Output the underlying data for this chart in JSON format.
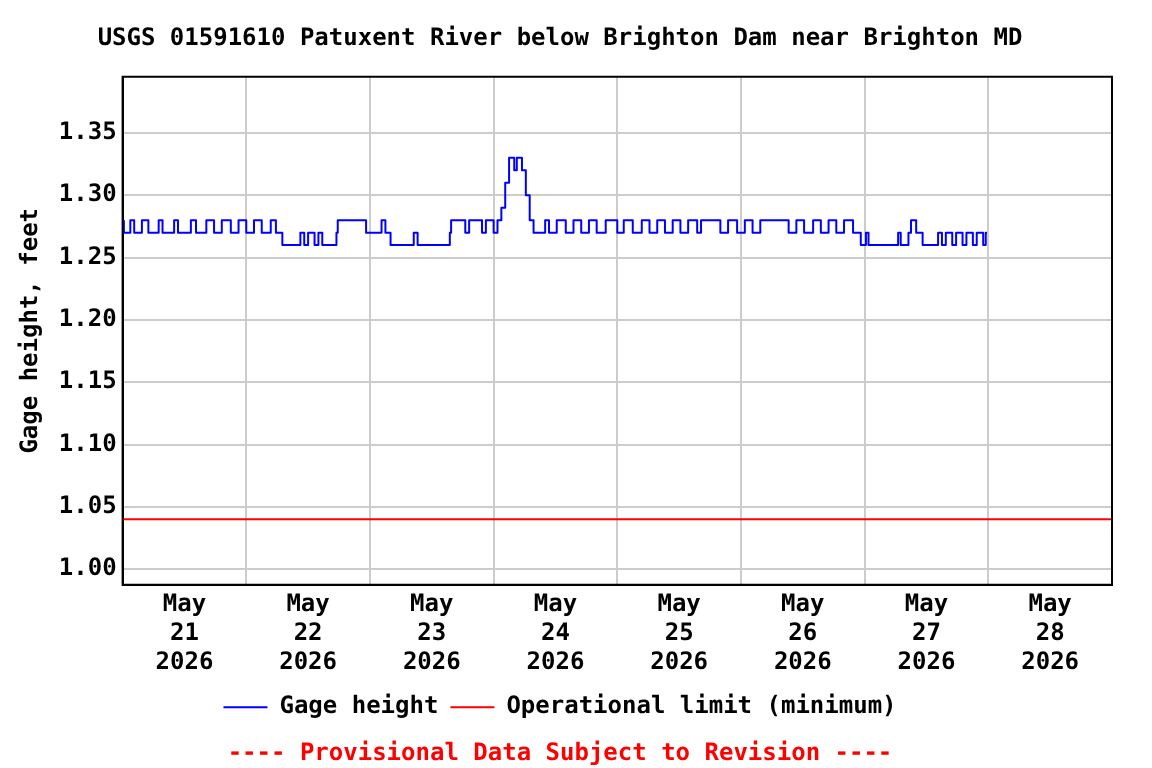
{
  "chart_data": {
    "type": "step",
    "title": "USGS 01591610 Patuxent River below Brighton Dam near Brighton MD",
    "ylabel": "Gage height, feet",
    "annotations": [
      "---- Provisional Data Subject to Revision ----"
    ],
    "xlim": [
      "2026-05-21T00:00",
      "2026-05-29T00:00"
    ],
    "xticks": [
      {
        "value": "2026-05-21T12:00",
        "label": "May\n21\n2026"
      },
      {
        "value": "2026-05-22T00:00",
        "label": null
      },
      {
        "value": "2026-05-22T12:00",
        "label": "May\n22\n2026"
      },
      {
        "value": "2026-05-23T00:00",
        "label": null
      },
      {
        "value": "2026-05-23T12:00",
        "label": "May\n23\n2026"
      },
      {
        "value": "2026-05-24T00:00",
        "label": null
      },
      {
        "value": "2026-05-24T12:00",
        "label": "May\n24\n2026"
      },
      {
        "value": "2026-05-25T00:00",
        "label": null
      },
      {
        "value": "2026-05-25T12:00",
        "label": "May\n25\n2026"
      },
      {
        "value": "2026-05-26T00:00",
        "label": null
      },
      {
        "value": "2026-05-26T12:00",
        "label": "May\n26\n2026"
      },
      {
        "value": "2026-05-27T00:00",
        "label": null
      },
      {
        "value": "2026-05-27T12:00",
        "label": "May\n27\n2026"
      },
      {
        "value": "2026-05-28T00:00",
        "label": null
      },
      {
        "value": "2026-05-28T12:00",
        "label": "May\n28\n2026"
      }
    ],
    "ylim": [
      0.9875,
      1.395
    ],
    "yticks": [
      {
        "value": 1,
        "label": "1.00"
      },
      {
        "value": 1.05,
        "label": "1.05"
      },
      {
        "value": 1.1,
        "label": "1.10"
      },
      {
        "value": 1.15,
        "label": "1.15"
      },
      {
        "value": 1.2,
        "label": "1.20"
      },
      {
        "value": 1.25,
        "label": "1.25"
      },
      {
        "value": 1.3,
        "label": "1.30"
      },
      {
        "value": 1.35,
        "label": "1.35"
      }
    ],
    "grid": true,
    "legend": "bottom",
    "marker": "none",
    "ref_lines": [
      {
        "axis": "y",
        "value": 1.04,
        "label": "Operational limit (minimum)",
        "color": "#ff0000"
      }
    ],
    "series": [
      {
        "name": "Gage height",
        "color": "#0000ff",
        "x": [
          "2026-05-21T00:15",
          "2026-05-21T01:30",
          "2026-05-21T02:15",
          "2026-05-21T03:45",
          "2026-05-21T05:00",
          "2026-05-21T07:00",
          "2026-05-21T07:45",
          "2026-05-21T10:00",
          "2026-05-21T10:45",
          "2026-05-21T13:15",
          "2026-05-21T14:15",
          "2026-05-21T16:15",
          "2026-05-21T17:45",
          "2026-05-21T19:15",
          "2026-05-21T21:00",
          "2026-05-21T22:30",
          "2026-05-22T00:00",
          "2026-05-22T01:30",
          "2026-05-22T03:00",
          "2026-05-22T04:45",
          "2026-05-22T05:45",
          "2026-05-22T07:00",
          "2026-05-22T10:30",
          "2026-05-22T11:15",
          "2026-05-22T12:00",
          "2026-05-22T13:15",
          "2026-05-22T14:00",
          "2026-05-22T14:45",
          "2026-05-22T17:30",
          "2026-05-22T17:45",
          "2026-05-22T23:15",
          "2026-05-23T02:15",
          "2026-05-23T03:00",
          "2026-05-23T04:00",
          "2026-05-23T08:30",
          "2026-05-23T09:15",
          "2026-05-23T15:30",
          "2026-05-23T15:45",
          "2026-05-23T18:30",
          "2026-05-23T19:15",
          "2026-05-23T21:45",
          "2026-05-23T22:30",
          "2026-05-24T00:00",
          "2026-05-24T00:45",
          "2026-05-24T01:30",
          "2026-05-24T02:15",
          "2026-05-24T03:00",
          "2026-05-24T04:00",
          "2026-05-24T04:30",
          "2026-05-24T05:30",
          "2026-05-24T06:15",
          "2026-05-24T07:00",
          "2026-05-24T07:45",
          "2026-05-24T10:00",
          "2026-05-24T10:45",
          "2026-05-24T12:15",
          "2026-05-24T14:00",
          "2026-05-24T15:30",
          "2026-05-24T17:00",
          "2026-05-24T18:30",
          "2026-05-24T20:00",
          "2026-05-24T21:45",
          "2026-05-25T00:00",
          "2026-05-25T01:15",
          "2026-05-25T03:00",
          "2026-05-25T04:45",
          "2026-05-25T06:15",
          "2026-05-25T07:45",
          "2026-05-25T09:15",
          "2026-05-25T10:45",
          "2026-05-25T12:15",
          "2026-05-25T13:45",
          "2026-05-25T15:30",
          "2026-05-25T16:15",
          "2026-05-25T20:00",
          "2026-05-25T21:30",
          "2026-05-25T23:15",
          "2026-05-26T00:45",
          "2026-05-26T02:15",
          "2026-05-26T03:45",
          "2026-05-26T09:15",
          "2026-05-26T10:45",
          "2026-05-26T12:15",
          "2026-05-26T14:00",
          "2026-05-26T15:30",
          "2026-05-26T17:00",
          "2026-05-26T18:30",
          "2026-05-26T20:00",
          "2026-05-26T21:45",
          "2026-05-26T23:15",
          "2026-05-27T00:15",
          "2026-05-27T00:45",
          "2026-05-27T06:30",
          "2026-05-27T07:00",
          "2026-05-27T08:30",
          "2026-05-27T09:00",
          "2026-05-27T10:00",
          "2026-05-27T11:15",
          "2026-05-27T14:15",
          "2026-05-27T15:00",
          "2026-05-27T15:45",
          "2026-05-27T17:00",
          "2026-05-27T17:45",
          "2026-05-27T19:00",
          "2026-05-27T19:45",
          "2026-05-27T21:00",
          "2026-05-27T21:45",
          "2026-05-27T23:00",
          "2026-05-27T23:30",
          "2026-05-27T23:45"
        ],
        "values": [
          1.28,
          1.27,
          1.28,
          1.27,
          1.28,
          1.27,
          1.28,
          1.27,
          1.28,
          1.27,
          1.28,
          1.27,
          1.28,
          1.27,
          1.28,
          1.27,
          1.28,
          1.27,
          1.28,
          1.27,
          1.28,
          1.27,
          1.26,
          1.27,
          1.26,
          1.27,
          1.26,
          1.27,
          1.26,
          1.27,
          1.28,
          1.27,
          1.28,
          1.27,
          1.26,
          1.27,
          1.26,
          1.27,
          1.28,
          1.27,
          1.28,
          1.27,
          1.28,
          1.27,
          1.28,
          1.29,
          1.31,
          1.33,
          1.32,
          1.33,
          1.32,
          1.3,
          1.28,
          1.27,
          1.28,
          1.27,
          1.28,
          1.27,
          1.28,
          1.27,
          1.28,
          1.27,
          1.28,
          1.27,
          1.28,
          1.27,
          1.28,
          1.27,
          1.28,
          1.27,
          1.28,
          1.27,
          1.28,
          1.27,
          1.28,
          1.27,
          1.28,
          1.27,
          1.28,
          1.27,
          1.28,
          1.27,
          1.28,
          1.27,
          1.28,
          1.27,
          1.28,
          1.27,
          1.28,
          1.27,
          1.26,
          1.27,
          1.26,
          1.27,
          1.26,
          1.27,
          1.28,
          1.27,
          1.26,
          1.27,
          1.26,
          1.27,
          1.26,
          1.27,
          1.26,
          1.27,
          1.26,
          1.27,
          1.26,
          1.27
        ]
      }
    ]
  }
}
